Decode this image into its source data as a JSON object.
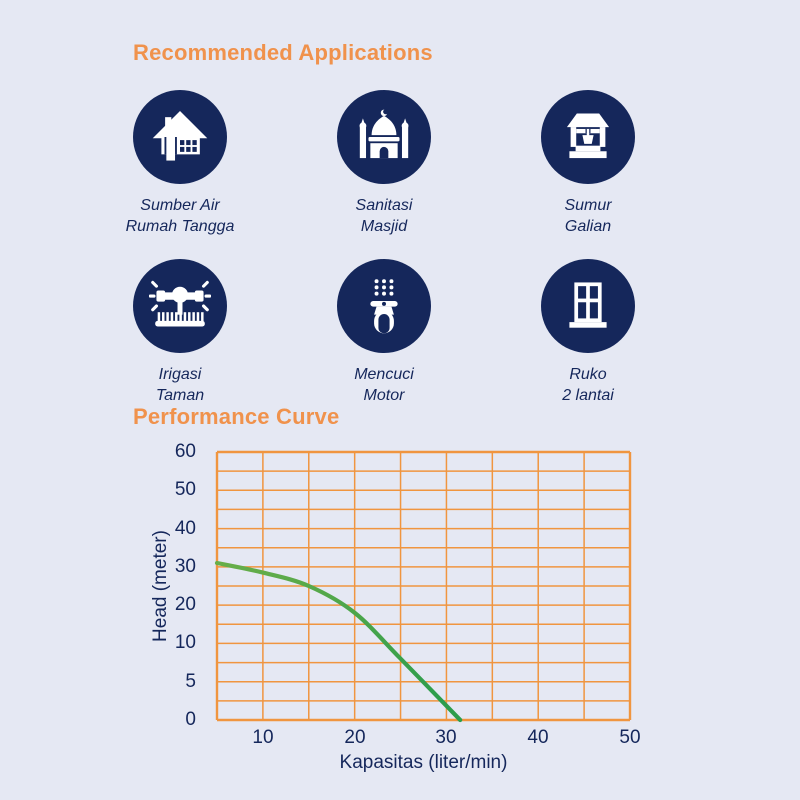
{
  "headings": {
    "applications": "Recommended Applications",
    "performance": "Performance Curve"
  },
  "colors": {
    "background": "#e5e8f3",
    "navy": "#15275b",
    "heading_orange": "#f0924c",
    "grid_orange": "#f0953f",
    "curve_green_start": "#68ae49",
    "curve_green_end": "#2d9d4c"
  },
  "applications": {
    "items": [
      {
        "icon": "house-icon",
        "line1": "Sumber Air",
        "line2": "Rumah Tangga"
      },
      {
        "icon": "mosque-icon",
        "line1": "Sanitasi",
        "line2": "Masjid"
      },
      {
        "icon": "well-icon",
        "line1": "Sumur",
        "line2": "Galian"
      },
      {
        "icon": "sprinkler-icon",
        "line1": "Irigasi",
        "line2": "Taman"
      },
      {
        "icon": "scooter-icon",
        "line1": "Mencuci",
        "line2": "Motor"
      },
      {
        "icon": "shophouse-icon",
        "line1": "Ruko",
        "line2": "2 lantai"
      }
    ]
  },
  "chart_data": {
    "type": "line",
    "title": "Performance Curve",
    "xlabel": "Kapasitas (liter/min)",
    "ylabel": "Head (meter)",
    "x_min": 5,
    "x_max": 50,
    "x_grid_step": 5,
    "x_tick_labels": [
      "10",
      "20",
      "30",
      "40",
      "50"
    ],
    "y_tick_labels_bottom_to_top": [
      "0",
      "5",
      "10",
      "20",
      "30",
      "40",
      "50",
      "60"
    ],
    "y_axis_note": "non-linear scale: labeled ticks equally spaced, one minor gridline between each",
    "grid": true,
    "legend_position": "none",
    "points_liters_vs_head_m": [
      [
        5,
        31
      ],
      [
        10,
        28.5
      ],
      [
        15,
        25
      ],
      [
        20,
        18
      ],
      [
        25,
        8
      ],
      [
        31.5,
        0
      ]
    ]
  }
}
